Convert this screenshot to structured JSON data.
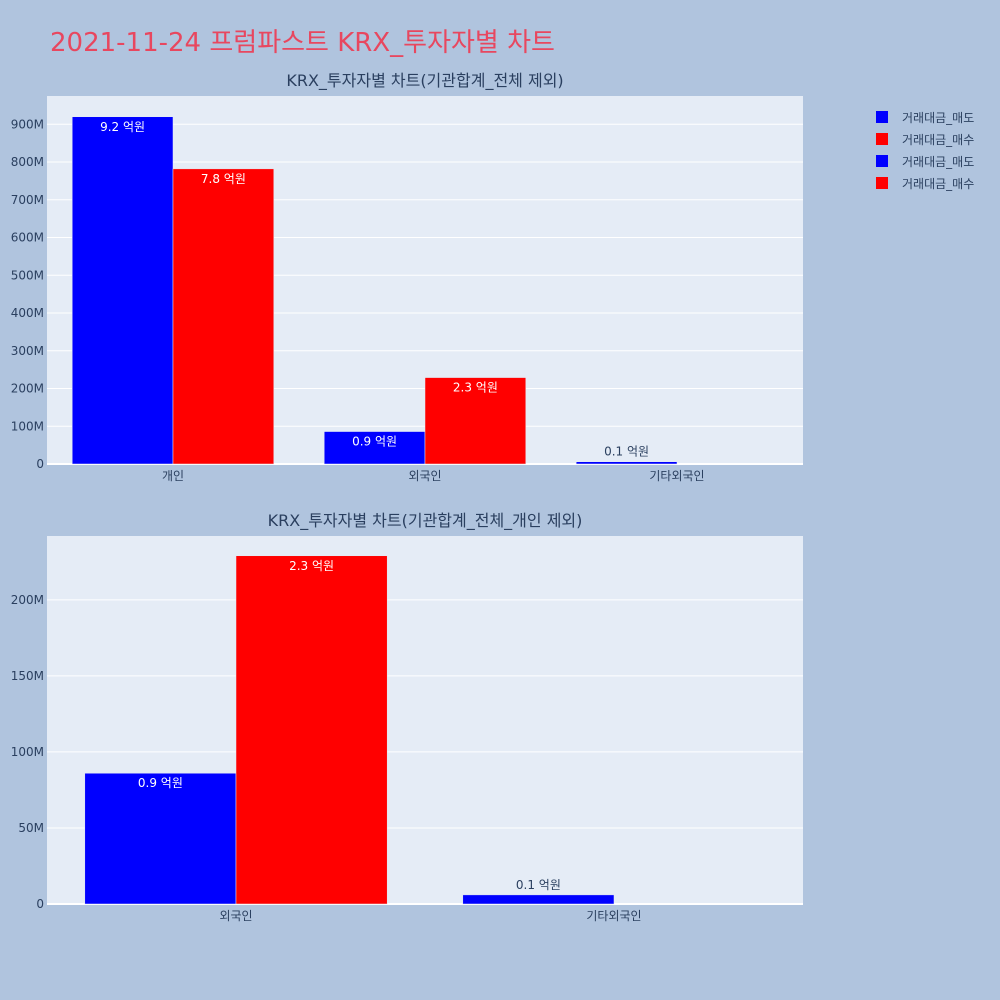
{
  "page": {
    "title": "2021-11-24 프럼파스트 KRX_투자자별 차트"
  },
  "legend": [
    {
      "label": "거래대금_매도",
      "color": "#0000ff"
    },
    {
      "label": "거래대금_매수",
      "color": "#ff0000"
    },
    {
      "label": "거래대금_매도",
      "color": "#0000ff"
    },
    {
      "label": "거래대금_매수",
      "color": "#ff0000"
    }
  ],
  "colors": {
    "sell": "#0000ff",
    "buy": "#ff0000",
    "plot_bg": "#e5ecf6",
    "page_bg": "#b0c4de"
  },
  "chart_data": [
    {
      "type": "bar",
      "title": "KRX_투자자별 차트(기관합계_전체 제외)",
      "categories": [
        "개인",
        "외국인",
        "기타외국인"
      ],
      "series": [
        {
          "name": "거래대금_매도",
          "values": [
            920000000,
            86000000,
            6000000
          ],
          "labels": [
            "9.2 억원",
            "0.9 억원",
            "0.1 억원"
          ]
        },
        {
          "name": "거래대금_매수",
          "values": [
            782000000,
            229000000,
            0
          ],
          "labels": [
            "7.8 억원",
            "2.3 억원",
            ""
          ]
        }
      ],
      "yticks": [
        0,
        100000000,
        200000000,
        300000000,
        400000000,
        500000000,
        600000000,
        700000000,
        800000000,
        900000000
      ],
      "ytick_labels": [
        "0",
        "100M",
        "200M",
        "300M",
        "400M",
        "500M",
        "600M",
        "700M",
        "800M",
        "900M"
      ],
      "ylim": [
        0,
        975000000
      ],
      "grid": true
    },
    {
      "type": "bar",
      "title": "KRX_투자자별 차트(기관합계_전체_개인 제외)",
      "categories": [
        "외국인",
        "기타외국인"
      ],
      "series": [
        {
          "name": "거래대금_매도",
          "values": [
            86000000,
            6000000
          ],
          "labels": [
            "0.9 억원",
            "0.1 억원"
          ]
        },
        {
          "name": "거래대금_매수",
          "values": [
            229000000,
            0
          ],
          "labels": [
            "2.3 억원",
            ""
          ]
        }
      ],
      "yticks": [
        0,
        50000000,
        100000000,
        150000000,
        200000000
      ],
      "ytick_labels": [
        "0",
        "50M",
        "100M",
        "150M",
        "200M"
      ],
      "ylim": [
        0,
        242000000
      ],
      "grid": true
    }
  ]
}
